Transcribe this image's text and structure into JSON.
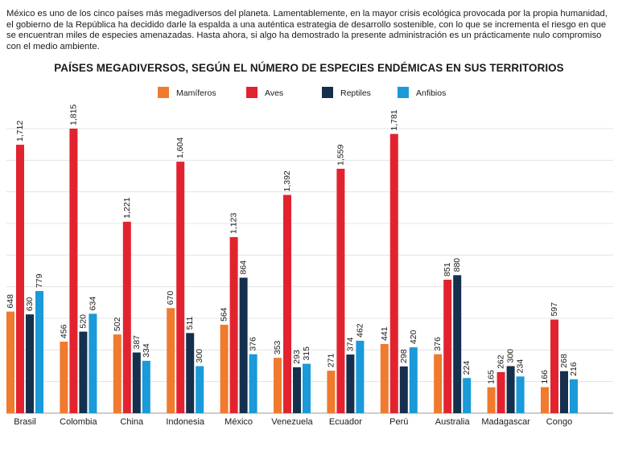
{
  "intro_text": "México es uno de los cinco países más megadiversos del planeta. Lamentablemente, en la mayor crisis ecológica provocada por la propia humanidad, el gobierno de la República ha decidido darle la espalda a una auténtica estrategia de desarrollo sostenible, con lo que se incrementa el riesgo en que se encuentran miles de especies amenazadas. Hasta ahora, si algo ha demostrado la presente administración es un prácticamente nulo compromiso con el medio ambiente.",
  "chart_data": {
    "type": "bar",
    "title": "PAÍSES MEGADIVERSOS, SEGÚN EL NÚMERO DE ESPECIES ENDÉMICAS EN SUS TERRITORIOS",
    "xlabel": "",
    "ylabel": "",
    "ylim": [
      0,
      1815
    ],
    "grid": true,
    "legend_position": "top",
    "categories": [
      "Brasil",
      "Colombia",
      "China",
      "Indonesia",
      "México",
      "Venezuela",
      "Ecuador",
      "Perú",
      "Australia",
      "Madagascar",
      "Congo"
    ],
    "series": [
      {
        "name": "Mamíferos",
        "color": "#f07a2e",
        "values": [
          648,
          456,
          502,
          670,
          564,
          353,
          271,
          441,
          376,
          165,
          166
        ],
        "labels": [
          "648",
          "456",
          "502",
          "670",
          "564",
          "353",
          "271",
          "441",
          "376",
          "165",
          "166"
        ]
      },
      {
        "name": "Aves",
        "color": "#e2232f",
        "values": [
          1712,
          1815,
          1221,
          1604,
          1123,
          1392,
          1559,
          1781,
          851,
          262,
          597
        ],
        "labels": [
          "1,712",
          "1,815",
          "1,221",
          "1,604",
          "1,123",
          "1,392",
          "1,559",
          "1,781",
          "851",
          "262",
          "597"
        ]
      },
      {
        "name": "Reptiles",
        "color": "#14304e",
        "values": [
          630,
          520,
          387,
          511,
          864,
          293,
          374,
          298,
          880,
          300,
          268
        ],
        "labels": [
          "630",
          "520",
          "387",
          "511",
          "864",
          "293",
          "374",
          "298",
          "880",
          "300",
          "268"
        ]
      },
      {
        "name": "Anfibios",
        "color": "#1a9ad8",
        "values": [
          779,
          634,
          334,
          300,
          376,
          315,
          462,
          420,
          224,
          234,
          216
        ],
        "labels": [
          "779",
          "634",
          "334",
          "300",
          "376",
          "315",
          "462",
          "420",
          "224",
          "234",
          "216"
        ]
      }
    ]
  }
}
